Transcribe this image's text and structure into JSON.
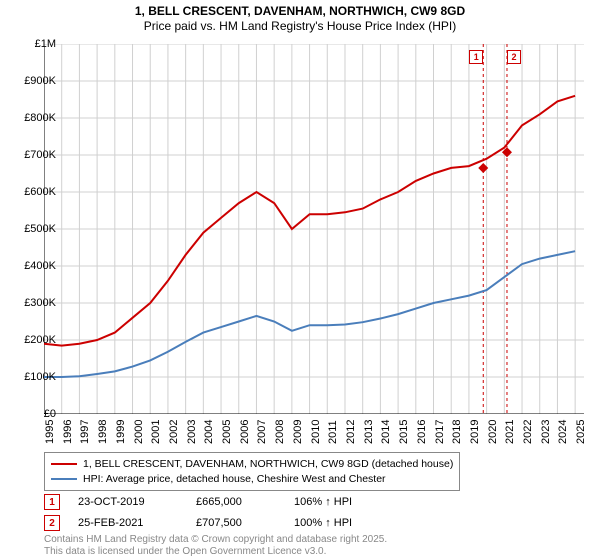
{
  "title": {
    "line1": "1, BELL CRESCENT, DAVENHAM, NORTHWICH, CW9 8GD",
    "line2": "Price paid vs. HM Land Registry's House Price Index (HPI)"
  },
  "chart": {
    "type": "line",
    "background_color": "#ffffff",
    "grid_color": "#d0d0d0",
    "axis_color": "#000000",
    "xlim": [
      1995,
      2025.5
    ],
    "ylim": [
      0,
      1000000
    ],
    "ytick_step": 100000,
    "yticks": [
      "£0",
      "£100K",
      "£200K",
      "£300K",
      "£400K",
      "£500K",
      "£600K",
      "£700K",
      "£800K",
      "£900K",
      "£1M"
    ],
    "xticks": [
      1995,
      1996,
      1997,
      1998,
      1999,
      2000,
      2001,
      2002,
      2003,
      2004,
      2005,
      2006,
      2007,
      2008,
      2009,
      2010,
      2011,
      2012,
      2013,
      2014,
      2015,
      2016,
      2017,
      2018,
      2019,
      2020,
      2021,
      2022,
      2023,
      2024,
      2025
    ],
    "label_fontsize": 11,
    "series": [
      {
        "name": "price_paid",
        "label": "1, BELL CRESCENT, DAVENHAM, NORTHWICH, CW9 8GD (detached house)",
        "color": "#cc0000",
        "line_width": 2,
        "x": [
          1995,
          1996,
          1997,
          1998,
          1999,
          2000,
          2001,
          2002,
          2003,
          2004,
          2005,
          2006,
          2007,
          2008,
          2009,
          2010,
          2011,
          2012,
          2013,
          2014,
          2015,
          2016,
          2017,
          2018,
          2019,
          2020,
          2021,
          2022,
          2023,
          2024,
          2025
        ],
        "y": [
          190000,
          185000,
          190000,
          200000,
          220000,
          260000,
          300000,
          360000,
          430000,
          490000,
          530000,
          570000,
          600000,
          570000,
          500000,
          540000,
          540000,
          545000,
          555000,
          580000,
          600000,
          630000,
          650000,
          665000,
          670000,
          690000,
          720000,
          780000,
          810000,
          845000,
          860000
        ]
      },
      {
        "name": "hpi",
        "label": "HPI: Average price, detached house, Cheshire West and Chester",
        "color": "#4a7ebb",
        "line_width": 2,
        "x": [
          1995,
          1996,
          1997,
          1998,
          1999,
          2000,
          2001,
          2002,
          2003,
          2004,
          2005,
          2006,
          2007,
          2008,
          2009,
          2010,
          2011,
          2012,
          2013,
          2014,
          2015,
          2016,
          2017,
          2018,
          2019,
          2020,
          2021,
          2022,
          2023,
          2024,
          2025
        ],
        "y": [
          100000,
          100000,
          102000,
          108000,
          115000,
          128000,
          145000,
          168000,
          195000,
          220000,
          235000,
          250000,
          265000,
          250000,
          225000,
          240000,
          240000,
          242000,
          248000,
          258000,
          270000,
          285000,
          300000,
          310000,
          320000,
          335000,
          370000,
          405000,
          420000,
          430000,
          440000
        ]
      }
    ],
    "sale_markers": [
      {
        "num": "1",
        "x": 2019.81,
        "y": 665000,
        "label_xoffset": -7
      },
      {
        "num": "2",
        "x": 2021.15,
        "y": 707500,
        "label_xoffset": 7
      }
    ],
    "sale_vlines": {
      "color": "#cc0000",
      "dash": "3,3",
      "width": 1
    }
  },
  "sales": [
    {
      "num": "1",
      "date": "23-OCT-2019",
      "price": "£665,000",
      "pct": "106% ↑ HPI"
    },
    {
      "num": "2",
      "date": "25-FEB-2021",
      "price": "£707,500",
      "pct": "100% ↑ HPI"
    }
  ],
  "footer": {
    "line1": "Contains HM Land Registry data © Crown copyright and database right 2025.",
    "line2": "This data is licensed under the Open Government Licence v3.0."
  }
}
